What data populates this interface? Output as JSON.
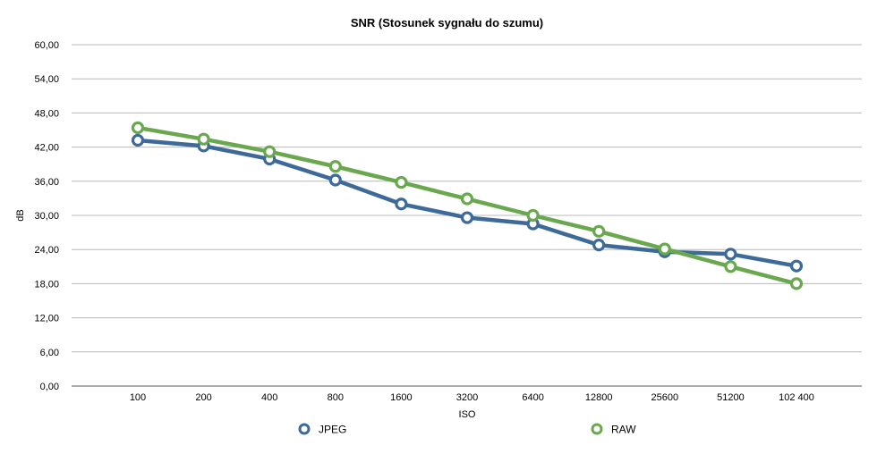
{
  "chart_data": {
    "type": "line",
    "title": "SNR (Stosunek sygnału do szumu)",
    "xlabel": "ISO",
    "ylabel": "dB",
    "categories": [
      "100",
      "200",
      "400",
      "800",
      "1600",
      "3200",
      "6400",
      "12800",
      "25600",
      "51200",
      "102 400"
    ],
    "ylim": [
      0,
      60
    ],
    "yticks": [
      "0,00",
      "6,00",
      "12,00",
      "18,00",
      "24,00",
      "30,00",
      "36,00",
      "42,00",
      "48,00",
      "54,00",
      "60,00"
    ],
    "grid": true,
    "legend_position": "bottom",
    "series": [
      {
        "name": "JPEG",
        "color": "#3d6a99",
        "values": [
          43.2,
          42.2,
          39.9,
          36.2,
          32.0,
          29.6,
          28.5,
          24.8,
          23.6,
          23.2,
          21.1
        ]
      },
      {
        "name": "RAW",
        "color": "#6aa84f",
        "values": [
          45.4,
          43.4,
          41.2,
          38.6,
          35.8,
          32.9,
          30.0,
          27.2,
          24.1,
          21.0,
          18.0
        ]
      }
    ]
  }
}
